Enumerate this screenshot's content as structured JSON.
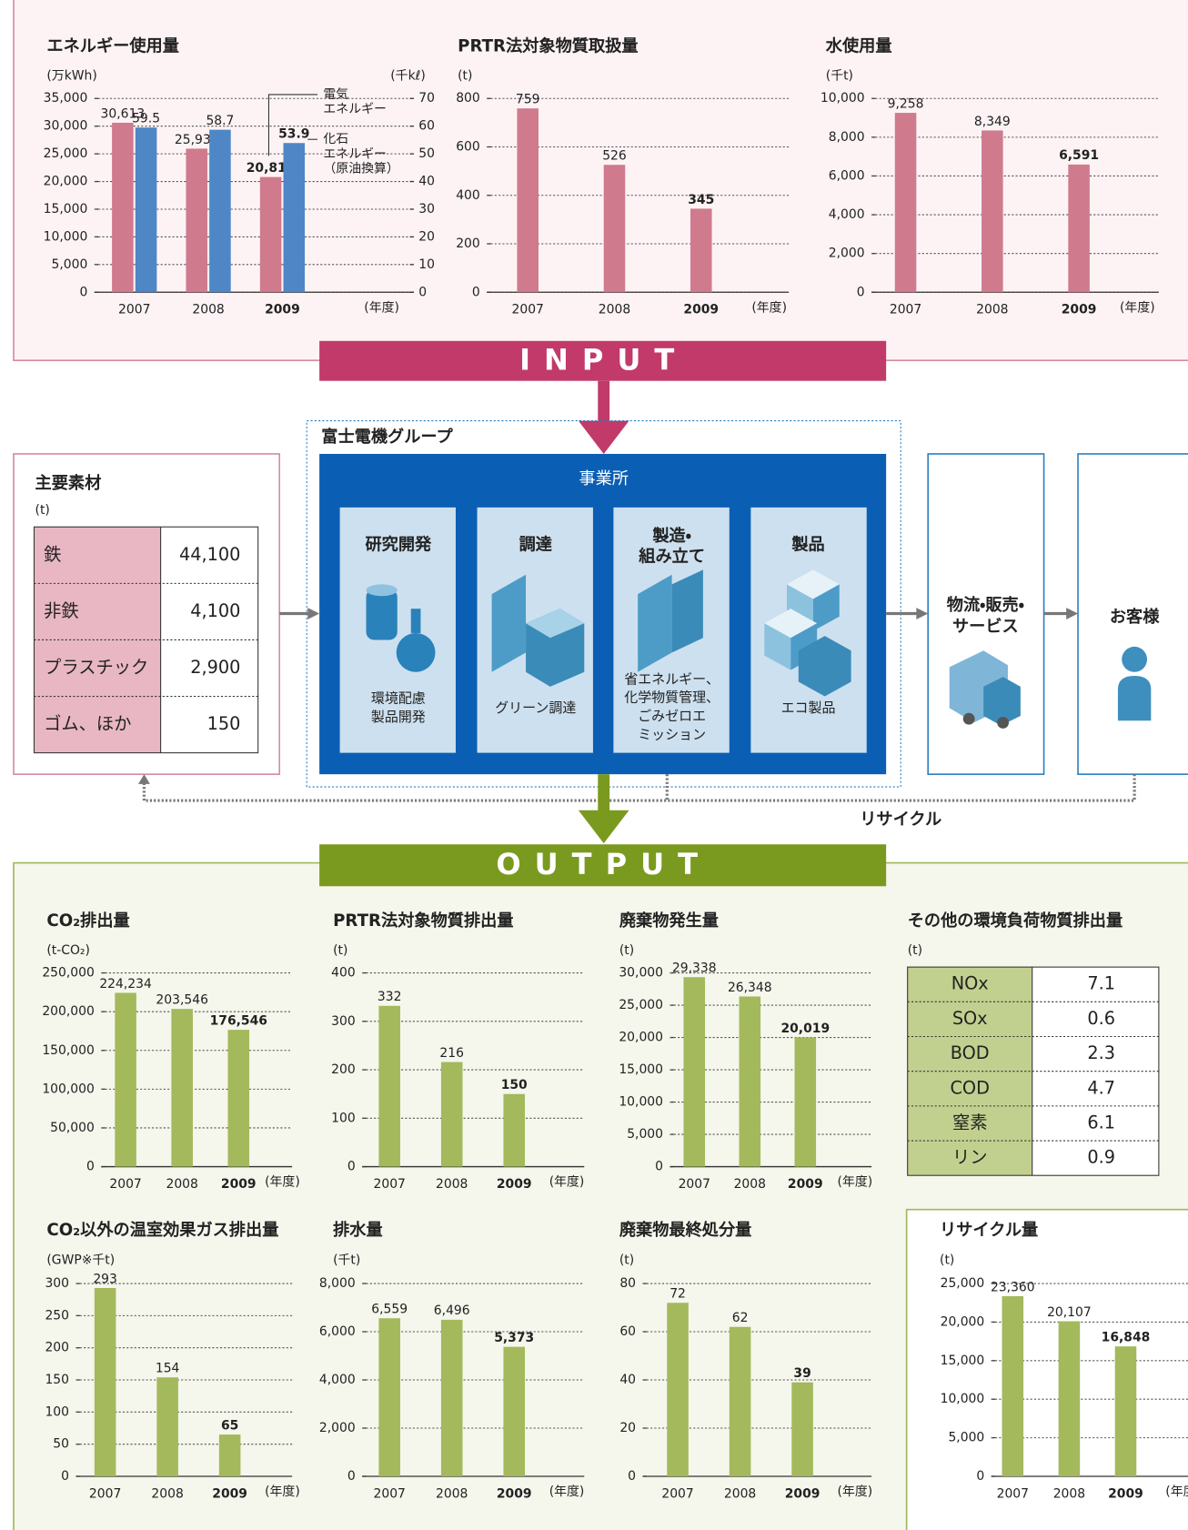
{
  "chart_data": [
    {
      "type": "bar",
      "title": "エネルギー使用量",
      "y_label": "(万kWh)",
      "y2_label": "(千kℓ)",
      "x_label": "(年度)",
      "categories": [
        "2007",
        "2008",
        "2009"
      ],
      "series": [
        {
          "name": "電気\nエネルギー",
          "color": "#d07a8e",
          "values": [
            30613,
            25937,
            20810
          ],
          "value_labels": [
            "30,613",
            "25,937",
            "20,810"
          ]
        },
        {
          "name": "化石\nエネルギー\n（原油換算）",
          "color": "#4f86c6",
          "axis": "y2",
          "values": [
            59.5,
            58.7,
            53.9
          ]
        }
      ],
      "ylim": [
        0,
        35000
      ],
      "yticks": [
        0,
        {
          "value": 5000,
          "label": "5,000"
        },
        {
          "value": 10000,
          "label": "10,000"
        },
        {
          "value": 15000,
          "label": "15,000"
        },
        {
          "value": 20000,
          "label": "20,000"
        },
        {
          "value": 25000,
          "label": "25,000"
        },
        {
          "value": 30000,
          "label": "30,000"
        },
        {
          "value": 35000,
          "label": "35,000"
        }
      ],
      "y2lim": [
        0,
        70
      ],
      "y2ticks": [
        0,
        10,
        20,
        30,
        40,
        50,
        60,
        70
      ],
      "grid": true
    },
    {
      "type": "bar",
      "title": "PRTR法対象物質取扱量",
      "y_label": "(t)",
      "x_label": "(年度)",
      "categories": [
        "2007",
        "2008",
        "2009"
      ],
      "values": [
        759,
        526,
        345
      ],
      "color": "#d07a8e",
      "ylim": [
        0,
        800
      ],
      "yticks": [
        0,
        200,
        400,
        600,
        800
      ],
      "grid": true
    },
    {
      "type": "bar",
      "title": "水使用量",
      "y_label": "(千t)",
      "x_label": "(年度)",
      "categories": [
        "2007",
        "2008",
        "2009"
      ],
      "values": [
        9258,
        8349,
        6591
      ],
      "value_labels": [
        "9,258",
        "8,349",
        "6,591"
      ],
      "color": "#d07a8e",
      "ylim": [
        0,
        10000
      ],
      "yticks": [
        0,
        {
          "value": 2000,
          "label": "2,000"
        },
        {
          "value": 4000,
          "label": "4,000"
        },
        {
          "value": 6000,
          "label": "6,000"
        },
        {
          "value": 8000,
          "label": "8,000"
        },
        {
          "value": 10000,
          "label": "10,000"
        }
      ],
      "grid": true
    },
    {
      "type": "bar",
      "title": "CO₂排出量",
      "y_label": "(t-CO₂)",
      "x_label": "(年度)",
      "categories": [
        "2007",
        "2008",
        "2009"
      ],
      "values": [
        224234,
        203546,
        176546
      ],
      "value_labels": [
        "224,234",
        "203,546",
        "176,546"
      ],
      "color": "#a3b95c",
      "ylim": [
        0,
        250000
      ],
      "yticks": [
        0,
        {
          "value": 50000,
          "label": "50,000"
        },
        {
          "value": 100000,
          "label": "100,000"
        },
        {
          "value": 150000,
          "label": "150,000"
        },
        {
          "value": 200000,
          "label": "200,000"
        },
        {
          "value": 250000,
          "label": "250,000"
        }
      ],
      "grid": true
    },
    {
      "type": "bar",
      "title": "PRTR法対象物質排出量",
      "y_label": "(t)",
      "x_label": "(年度)",
      "categories": [
        "2007",
        "2008",
        "2009"
      ],
      "values": [
        332,
        216,
        150
      ],
      "color": "#a3b95c",
      "ylim": [
        0,
        400
      ],
      "yticks": [
        0,
        100,
        200,
        300,
        400
      ],
      "grid": true
    },
    {
      "type": "bar",
      "title": "廃棄物発生量",
      "y_label": "(t)",
      "x_label": "(年度)",
      "categories": [
        "2007",
        "2008",
        "2009"
      ],
      "values": [
        29338,
        26348,
        20019
      ],
      "value_labels": [
        "29,338",
        "26,348",
        "20,019"
      ],
      "color": "#a3b95c",
      "ylim": [
        0,
        30000
      ],
      "yticks": [
        0,
        {
          "value": 5000,
          "label": "5,000"
        },
        {
          "value": 10000,
          "label": "10,000"
        },
        {
          "value": 15000,
          "label": "15,000"
        },
        {
          "value": 20000,
          "label": "20,000"
        },
        {
          "value": 25000,
          "label": "25,000"
        },
        {
          "value": 30000,
          "label": "30,000"
        }
      ],
      "grid": true
    },
    {
      "type": "bar",
      "title": "CO₂以外の温室効果ガス排出量",
      "y_label": "(GWP※千t)",
      "x_label": "(年度)",
      "categories": [
        "2007",
        "2008",
        "2009"
      ],
      "values": [
        293,
        154,
        65
      ],
      "color": "#a3b95c",
      "ylim": [
        0,
        300
      ],
      "yticks": [
        0,
        50,
        100,
        150,
        200,
        250,
        300
      ],
      "grid": true
    },
    {
      "type": "bar",
      "title": "排水量",
      "y_label": "(千t)",
      "x_label": "(年度)",
      "categories": [
        "2007",
        "2008",
        "2009"
      ],
      "values": [
        6559,
        6496,
        5373
      ],
      "value_labels": [
        "6,559",
        "6,496",
        "5,373"
      ],
      "color": "#a3b95c",
      "ylim": [
        0,
        8000
      ],
      "yticks": [
        0,
        {
          "value": 2000,
          "label": "2,000"
        },
        {
          "value": 4000,
          "label": "4,000"
        },
        {
          "value": 6000,
          "label": "6,000"
        },
        {
          "value": 8000,
          "label": "8,000"
        }
      ],
      "grid": true
    },
    {
      "type": "bar",
      "title": "廃棄物最終処分量",
      "y_label": "(t)",
      "x_label": "(年度)",
      "categories": [
        "2007",
        "2008",
        "2009"
      ],
      "values": [
        72,
        62,
        39
      ],
      "color": "#a3b95c",
      "ylim": [
        0,
        80
      ],
      "yticks": [
        0,
        20,
        40,
        60,
        80
      ],
      "grid": true
    },
    {
      "type": "bar",
      "title": "リサイクル量",
      "y_label": "(t)",
      "x_label": "(年度)",
      "categories": [
        "2007",
        "2008",
        "2009"
      ],
      "values": [
        23360,
        20107,
        16848
      ],
      "value_labels": [
        "23,360",
        "20,107",
        "16,848"
      ],
      "color": "#a3b95c",
      "ylim": [
        0,
        25000
      ],
      "yticks": [
        0,
        {
          "value": 5000,
          "label": "5,000"
        },
        {
          "value": 10000,
          "label": "10,000"
        },
        {
          "value": 15000,
          "label": "15,000"
        },
        {
          "value": 20000,
          "label": "20,000"
        },
        {
          "value": 25000,
          "label": "25,000"
        }
      ],
      "grid": true
    }
  ],
  "input_label": "INPUT",
  "output_label": "OUTPUT",
  "group_label": "富士電機グループ",
  "site_label": "事業所",
  "processes": [
    {
      "title": "研究開発",
      "note": "環境配慮\n製品開発"
    },
    {
      "title": "調達",
      "note": "グリーン調達"
    },
    {
      "title": "製造・\n組み立て",
      "note": "省エネルギー、\n化学物質管理、\nごみゼロエ\nミッション"
    },
    {
      "title": "製品",
      "note": "エコ製品"
    }
  ],
  "logistics": "物流・販売・\nサービス",
  "customer": "お客様",
  "recycle": "リサイクル",
  "materials": {
    "title": "主要素材",
    "unit": "(t)",
    "rows": [
      [
        "鉄",
        "44,100"
      ],
      [
        "非鉄",
        "4,100"
      ],
      [
        "プラスチック",
        "2,900"
      ],
      [
        "ゴム、ほか",
        "150"
      ]
    ]
  },
  "emissions": {
    "title": "その他の環境負荷物質排出量",
    "unit": "(t)",
    "rows": [
      [
        "NOx",
        "7.1"
      ],
      [
        "SOx",
        "0.6"
      ],
      [
        "BOD",
        "2.3"
      ],
      [
        "COD",
        "4.7"
      ],
      [
        "窒素",
        "6.1"
      ],
      [
        "リン",
        "0.9"
      ]
    ]
  }
}
